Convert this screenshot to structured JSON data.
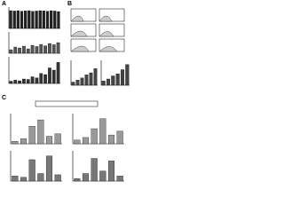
{
  "panel_labels": [
    "A",
    "B",
    "C"
  ],
  "chart_data": [
    {
      "type": "bar",
      "color": "#222",
      "ylim": [
        0,
        120
      ],
      "values": [
        100,
        98,
        100,
        97,
        99,
        100,
        96,
        98,
        100,
        99,
        97,
        100,
        98,
        95
      ]
    },
    {
      "type": "bar",
      "color": "#555",
      "ylim": [
        0,
        120
      ],
      "values": [
        20,
        35,
        30,
        40,
        25,
        45,
        38,
        50,
        42,
        55,
        48,
        60
      ]
    },
    {
      "type": "bar",
      "color": "#333",
      "ylim": [
        0,
        120
      ],
      "values": [
        10,
        15,
        12,
        20,
        18,
        30,
        25,
        45,
        40,
        70,
        60,
        95
      ]
    },
    {
      "type": "bar",
      "color": "#444",
      "ylim": [
        0,
        120
      ],
      "values": [
        15,
        25,
        35,
        50,
        60,
        80
      ]
    },
    {
      "type": "bar",
      "color": "#444",
      "ylim": [
        0,
        120
      ],
      "values": [
        20,
        30,
        45,
        55,
        75,
        100
      ]
    },
    {
      "type": "bar",
      "color": "#999",
      "ylim": [
        0,
        120
      ],
      "values": [
        10,
        20,
        70,
        95,
        30,
        40
      ]
    },
    {
      "type": "bar",
      "color": "#999",
      "ylim": [
        0,
        120
      ],
      "values": [
        15,
        25,
        60,
        100,
        35,
        50
      ]
    },
    {
      "type": "bar",
      "color": "#777",
      "ylim": [
        0,
        120
      ],
      "values": [
        20,
        15,
        85,
        30,
        100,
        25
      ]
    },
    {
      "type": "bar",
      "color": "#777",
      "ylim": [
        0,
        120
      ],
      "values": [
        10,
        30,
        90,
        40,
        80,
        20
      ]
    }
  ]
}
